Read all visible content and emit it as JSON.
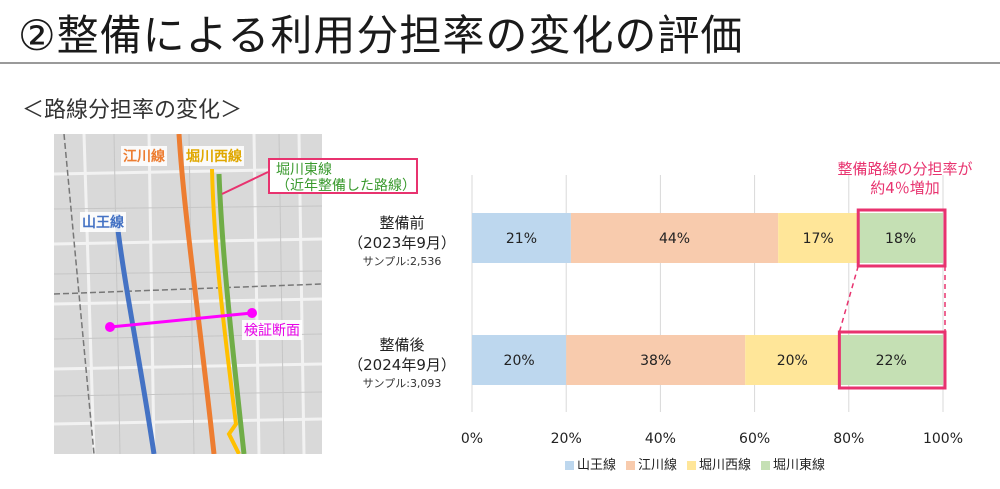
{
  "title": "②整備による利用分担率の変化の評価",
  "section_heading": "＜路線分担率の変化＞",
  "map": {
    "labels": {
      "yamaou": "山王線",
      "egawa": "江川線",
      "horikawa_nishi": "堀川西線",
      "callout_line1": "堀川東線",
      "callout_line2": "（近年整備した路線）",
      "section": "検証断面"
    },
    "colors": {
      "yamaou": "#4472c4",
      "egawa": "#ed7d31",
      "horikawa_nishi": "#ffc000",
      "horikawa_higashi": "#70ad47",
      "section": "#ff00ff"
    }
  },
  "annotation": {
    "line1": "整備路線の分担率が",
    "line2": "約4％増加"
  },
  "chart_data": {
    "type": "bar",
    "orientation": "horizontal",
    "stacked": true,
    "xlim": [
      0,
      100
    ],
    "xticks": [
      "0%",
      "20%",
      "40%",
      "60%",
      "80%",
      "100%"
    ],
    "grid": true,
    "legend_position": "bottom",
    "categories": [
      {
        "label": "整備前",
        "period": "（2023年9月）",
        "sample": "サンプル:2,536"
      },
      {
        "label": "整備後",
        "period": "（2024年9月）",
        "sample": "サンプル:3,093"
      }
    ],
    "series": [
      {
        "name": "山王線",
        "color": "#bdd7ee",
        "values": [
          21,
          20
        ],
        "labels": [
          "21%",
          "20%"
        ]
      },
      {
        "name": "江川線",
        "color": "#f8cbad",
        "values": [
          44,
          38
        ],
        "labels": [
          "44%",
          "38%"
        ]
      },
      {
        "name": "堀川西線",
        "color": "#ffe699",
        "values": [
          17,
          20
        ],
        "labels": [
          "17%",
          "20%"
        ]
      },
      {
        "name": "堀川東線",
        "color": "#c5e0b4",
        "values": [
          18,
          22
        ],
        "labels": [
          "18%",
          "22%"
        ]
      }
    ],
    "highlight_series": "堀川東線",
    "highlight_color": "#e8336f"
  }
}
